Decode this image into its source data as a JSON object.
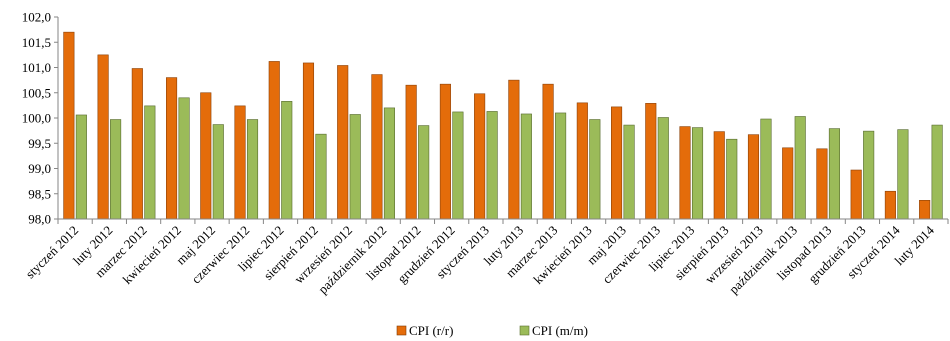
{
  "chart_data": {
    "type": "bar",
    "title": "",
    "xlabel": "",
    "ylabel": "",
    "ylim": [
      98.0,
      102.0
    ],
    "ytick_step": 0.5,
    "y_tick_labels": [
      "98,0",
      "98,5",
      "99,0",
      "99,5",
      "100,0",
      "100,5",
      "101,0",
      "101,5",
      "102,0"
    ],
    "grid": false,
    "legend_position": "bottom",
    "categories": [
      "styczeń 2012",
      "luty 2012",
      "marzec 2012",
      "kwiecień 2012",
      "maj 2012",
      "czerwiec 2012",
      "lipiec 2012",
      "sierpień 2012",
      "wrzesień 2012",
      "październik 2012",
      "listopad 2012",
      "grudzień 2012",
      "styczeń 2013",
      "luty 2013",
      "marzec 2013",
      "kwiecień 2013",
      "maj 2013",
      "czerwiec 2013",
      "lipiec 2013",
      "sierpień 2013",
      "wrzesień 2013",
      "październik 2013",
      "listopad 2013",
      "grudzień 2013",
      "styczeń 2014",
      "luty 2014"
    ],
    "series": [
      {
        "name": "CPI (r/r)",
        "color": "#E46C0A",
        "values": [
          101.7,
          101.25,
          100.98,
          100.8,
          100.5,
          100.24,
          101.12,
          101.09,
          101.04,
          100.86,
          100.65,
          100.67,
          100.48,
          100.75,
          100.67,
          100.3,
          100.22,
          100.29,
          99.83,
          99.73,
          99.67,
          99.41,
          99.39,
          98.97,
          98.55,
          98.37
        ]
      },
      {
        "name": "CPI (m/m)",
        "color": "#9BBB59",
        "values": [
          100.06,
          99.97,
          100.24,
          100.4,
          99.87,
          99.97,
          100.33,
          99.68,
          100.07,
          100.2,
          99.85,
          100.12,
          100.13,
          100.08,
          100.1,
          99.97,
          99.86,
          100.01,
          99.81,
          99.58,
          99.98,
          100.03,
          99.79,
          99.74,
          99.77,
          99.86
        ]
      }
    ]
  }
}
